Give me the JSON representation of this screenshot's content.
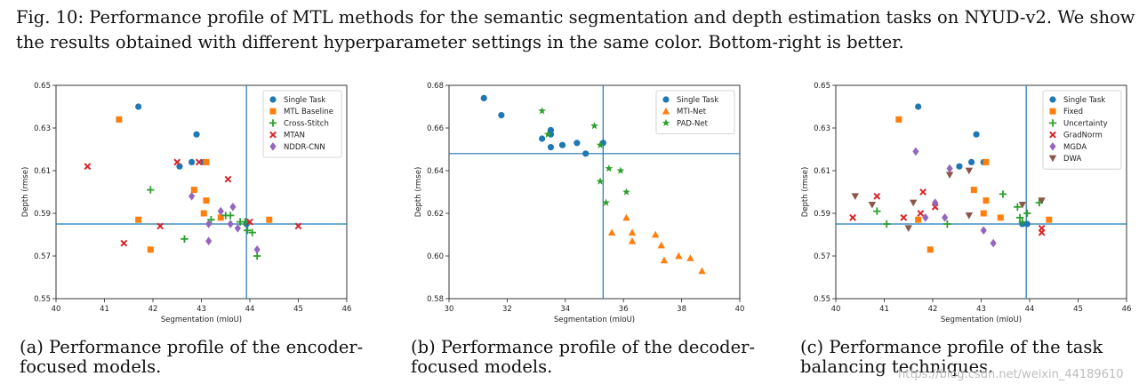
{
  "caption": {
    "text": "Fig. 10: Performance profile of MTL methods for the semantic segmentation and depth estimation tasks on NYUD-v2. We show the results obtained with different hyperparameter settings in the same color. Bottom-right is better."
  },
  "subcaptions": {
    "a": "(a) Performance profile of the encoder-focused models.",
    "b": "(b) Performance profile of the decoder-focused models.",
    "c": "(c) Performance profile of the task balancing techniques."
  },
  "watermark": "https://blog.csdn.net/weixin_44189610",
  "chart_data": [
    {
      "type": "scatter",
      "xlabel": "Segmentation (mIoU)",
      "ylabel": "Depth (rmse)",
      "xlim": [
        40,
        46
      ],
      "ylim": [
        0.55,
        0.65
      ],
      "xticks": [
        40,
        41,
        42,
        43,
        44,
        45,
        46
      ],
      "yticks": [
        0.55,
        0.57,
        0.59,
        0.61,
        0.63,
        0.65
      ],
      "reference_lines": {
        "x": 43.93,
        "y": 0.585
      },
      "legend_position": "top-right",
      "grid": false,
      "series": [
        {
          "name": "Single Task",
          "color": "#1f77b4",
          "marker": "circle",
          "points": [
            [
              41.7,
              0.64
            ],
            [
              42.9,
              0.627
            ],
            [
              42.55,
              0.612
            ],
            [
              42.8,
              0.614
            ],
            [
              43.05,
              0.614
            ],
            [
              43.93,
              0.585
            ]
          ]
        },
        {
          "name": "MTL Baseline",
          "color": "#ff7f0e",
          "marker": "square",
          "points": [
            [
              41.3,
              0.634
            ],
            [
              42.85,
              0.601
            ],
            [
              43.1,
              0.596
            ],
            [
              43.05,
              0.59
            ],
            [
              43.4,
              0.588
            ],
            [
              41.7,
              0.587
            ],
            [
              44.4,
              0.587
            ],
            [
              41.95,
              0.573
            ],
            [
              43.1,
              0.614
            ]
          ]
        },
        {
          "name": "Cross-Stitch",
          "color": "#2ca02c",
          "marker": "plus",
          "points": [
            [
              41.95,
              0.601
            ],
            [
              43.2,
              0.587
            ],
            [
              43.6,
              0.589
            ],
            [
              43.5,
              0.589
            ],
            [
              43.8,
              0.586
            ],
            [
              43.9,
              0.586
            ],
            [
              43.95,
              0.582
            ],
            [
              44.05,
              0.581
            ],
            [
              44.15,
              0.57
            ],
            [
              42.65,
              0.578
            ]
          ]
        },
        {
          "name": "MTAN",
          "color": "#d62728",
          "marker": "x",
          "points": [
            [
              40.65,
              0.612
            ],
            [
              42.5,
              0.614
            ],
            [
              42.95,
              0.614
            ],
            [
              43.55,
              0.606
            ],
            [
              42.15,
              0.584
            ],
            [
              41.4,
              0.576
            ],
            [
              44.0,
              0.586
            ],
            [
              45.0,
              0.584
            ]
          ]
        },
        {
          "name": "NDDR-CNN",
          "color": "#9467bd",
          "marker": "diamond",
          "points": [
            [
              42.8,
              0.598
            ],
            [
              43.65,
              0.593
            ],
            [
              43.4,
              0.591
            ],
            [
              43.15,
              0.585
            ],
            [
              43.6,
              0.585
            ],
            [
              43.75,
              0.583
            ],
            [
              43.15,
              0.577
            ],
            [
              44.15,
              0.573
            ]
          ]
        }
      ]
    },
    {
      "type": "scatter",
      "xlabel": "Segmentation (mIoU)",
      "ylabel": "Depth (rmse)",
      "xlim": [
        30,
        40
      ],
      "ylim": [
        0.58,
        0.68
      ],
      "xticks": [
        30,
        32,
        34,
        36,
        38,
        40
      ],
      "yticks": [
        0.58,
        0.6,
        0.62,
        0.64,
        0.66,
        0.68
      ],
      "reference_lines": {
        "x": 35.3,
        "y": 0.648
      },
      "legend_position": "top-right",
      "grid": false,
      "series": [
        {
          "name": "Single Task",
          "color": "#1f77b4",
          "marker": "circle",
          "points": [
            [
              31.2,
              0.674
            ],
            [
              31.8,
              0.666
            ],
            [
              33.2,
              0.655
            ],
            [
              33.5,
              0.659
            ],
            [
              33.5,
              0.657
            ],
            [
              33.5,
              0.651
            ],
            [
              33.9,
              0.652
            ],
            [
              34.4,
              0.653
            ],
            [
              34.7,
              0.648
            ],
            [
              35.3,
              0.653
            ]
          ]
        },
        {
          "name": "MTI-Net",
          "color": "#ff7f0e",
          "marker": "triangle",
          "points": [
            [
              36.1,
              0.618
            ],
            [
              35.6,
              0.611
            ],
            [
              36.3,
              0.611
            ],
            [
              36.3,
              0.607
            ],
            [
              37.1,
              0.61
            ],
            [
              37.3,
              0.605
            ],
            [
              37.9,
              0.6
            ],
            [
              38.3,
              0.599
            ],
            [
              37.4,
              0.598
            ],
            [
              38.7,
              0.593
            ]
          ]
        },
        {
          "name": "PAD-Net",
          "color": "#2ca02c",
          "marker": "star",
          "points": [
            [
              33.2,
              0.668
            ],
            [
              33.4,
              0.657
            ],
            [
              35.0,
              0.661
            ],
            [
              35.2,
              0.652
            ],
            [
              35.5,
              0.641
            ],
            [
              35.9,
              0.64
            ],
            [
              35.2,
              0.635
            ],
            [
              36.1,
              0.63
            ],
            [
              35.4,
              0.625
            ]
          ]
        }
      ]
    },
    {
      "type": "scatter",
      "xlabel": "Segmentation (mIoU)",
      "ylabel": "Depth (rmse)",
      "xlim": [
        40,
        46
      ],
      "ylim": [
        0.55,
        0.65
      ],
      "xticks": [
        40,
        41,
        42,
        43,
        44,
        45,
        46
      ],
      "yticks": [
        0.55,
        0.57,
        0.59,
        0.61,
        0.63,
        0.65
      ],
      "reference_lines": {
        "x": 43.93,
        "y": 0.585
      },
      "legend_position": "top-right",
      "grid": false,
      "series": [
        {
          "name": "Single Task",
          "color": "#1f77b4",
          "marker": "circle",
          "points": [
            [
              41.7,
              0.64
            ],
            [
              42.9,
              0.627
            ],
            [
              42.55,
              0.612
            ],
            [
              42.8,
              0.614
            ],
            [
              43.05,
              0.614
            ],
            [
              43.85,
              0.585
            ],
            [
              43.95,
              0.585
            ]
          ]
        },
        {
          "name": "Fixed",
          "color": "#ff7f0e",
          "marker": "square",
          "points": [
            [
              41.3,
              0.634
            ],
            [
              42.85,
              0.601
            ],
            [
              43.1,
              0.596
            ],
            [
              43.05,
              0.59
            ],
            [
              43.4,
              0.588
            ],
            [
              41.7,
              0.587
            ],
            [
              44.4,
              0.587
            ],
            [
              41.95,
              0.573
            ],
            [
              43.1,
              0.614
            ]
          ]
        },
        {
          "name": "Uncertainty",
          "color": "#2ca02c",
          "marker": "plus",
          "points": [
            [
              40.85,
              0.591
            ],
            [
              41.05,
              0.585
            ],
            [
              42.3,
              0.585
            ],
            [
              43.45,
              0.599
            ],
            [
              43.75,
              0.593
            ],
            [
              43.8,
              0.588
            ],
            [
              43.95,
              0.59
            ],
            [
              44.2,
              0.595
            ],
            [
              43.85,
              0.586
            ]
          ]
        },
        {
          "name": "GradNorm",
          "color": "#d62728",
          "marker": "x",
          "points": [
            [
              40.35,
              0.588
            ],
            [
              40.85,
              0.598
            ],
            [
              41.4,
              0.588
            ],
            [
              41.8,
              0.6
            ],
            [
              41.75,
              0.59
            ],
            [
              42.05,
              0.593
            ],
            [
              44.25,
              0.583
            ],
            [
              44.25,
              0.581
            ]
          ]
        },
        {
          "name": "MGDA",
          "color": "#9467bd",
          "marker": "diamond",
          "points": [
            [
              41.65,
              0.619
            ],
            [
              42.35,
              0.611
            ],
            [
              42.05,
              0.595
            ],
            [
              42.25,
              0.588
            ],
            [
              41.85,
              0.588
            ],
            [
              43.05,
              0.582
            ],
            [
              43.25,
              0.576
            ]
          ]
        },
        {
          "name": "DWA",
          "color": "#8c564b",
          "marker": "triangle-down",
          "points": [
            [
              40.4,
              0.598
            ],
            [
              40.75,
              0.594
            ],
            [
              41.5,
              0.583
            ],
            [
              41.6,
              0.595
            ],
            [
              42.35,
              0.608
            ],
            [
              42.75,
              0.61
            ],
            [
              42.75,
              0.589
            ],
            [
              43.85,
              0.594
            ],
            [
              44.25,
              0.596
            ]
          ]
        }
      ]
    }
  ]
}
